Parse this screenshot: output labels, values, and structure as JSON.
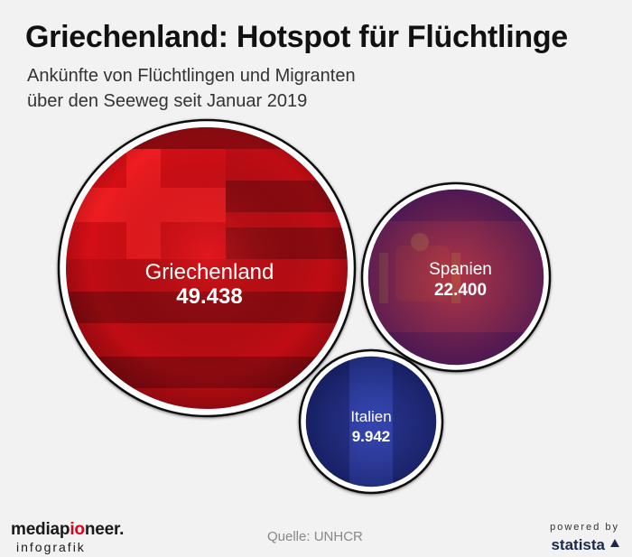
{
  "title": "Griechenland: Hotspot für Flüchtlinge",
  "subtitle": [
    "Ankünfte von Flüchtlingen und Migranten",
    "über den Seeweg seit Januar 2019"
  ],
  "chart_data": {
    "type": "bubble",
    "title": "Griechenland: Hotspot für Flüchtlinge",
    "subtitle": "Ankünfte von Flüchtlingen und Migranten über den Seeweg seit Januar 2019",
    "categories": [
      "Griechenland",
      "Spanien",
      "Italien"
    ],
    "values": [
      49438,
      22400,
      9942
    ],
    "value_labels": [
      "49.438",
      "22.400",
      "9.942"
    ],
    "fill": "flag of each country"
  },
  "footer": {
    "brand_left": "mediap",
    "brand_accent": "io",
    "brand_right": "neer.",
    "brand_sub": "infografik",
    "source": "Quelle: UNHCR",
    "powered": "powered by",
    "statista": "statista"
  },
  "colors": {
    "greece_red": "#e8101a",
    "greece_dark": "#9a0a10",
    "spain_purple": "#7a2a6a",
    "italy_blue": "#2a3a9a",
    "brand_accent": "#e3001b"
  }
}
